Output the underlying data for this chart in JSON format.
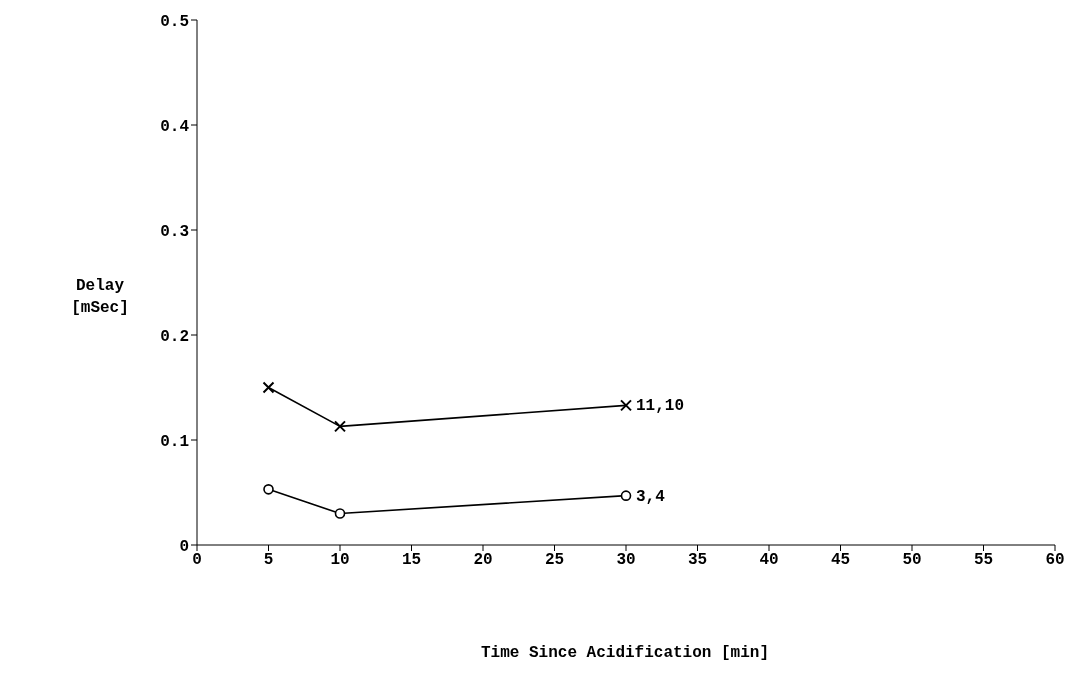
{
  "chart_data": {
    "type": "line",
    "xlabel": "Time Since Acidification [min]",
    "ylabel": "Delay [mSec]",
    "xlim": [
      0,
      60
    ],
    "xticks": [
      0,
      5,
      10,
      15,
      20,
      25,
      30,
      35,
      40,
      45,
      50,
      55,
      60
    ],
    "ylim": [
      0,
      0.5
    ],
    "yticks": [
      0,
      0.1,
      0.2,
      0.3,
      0.4,
      0.5
    ],
    "grid": false,
    "legend": false,
    "x": [
      5,
      10,
      30
    ],
    "series": [
      {
        "name": "11,10",
        "color": "#000000",
        "marker": "cross",
        "values": [
          0.15,
          0.113,
          0.133
        ]
      },
      {
        "name": "3,4",
        "color": "#000000",
        "marker": "circle",
        "values": [
          0.053,
          0.03,
          0.047
        ]
      }
    ]
  }
}
